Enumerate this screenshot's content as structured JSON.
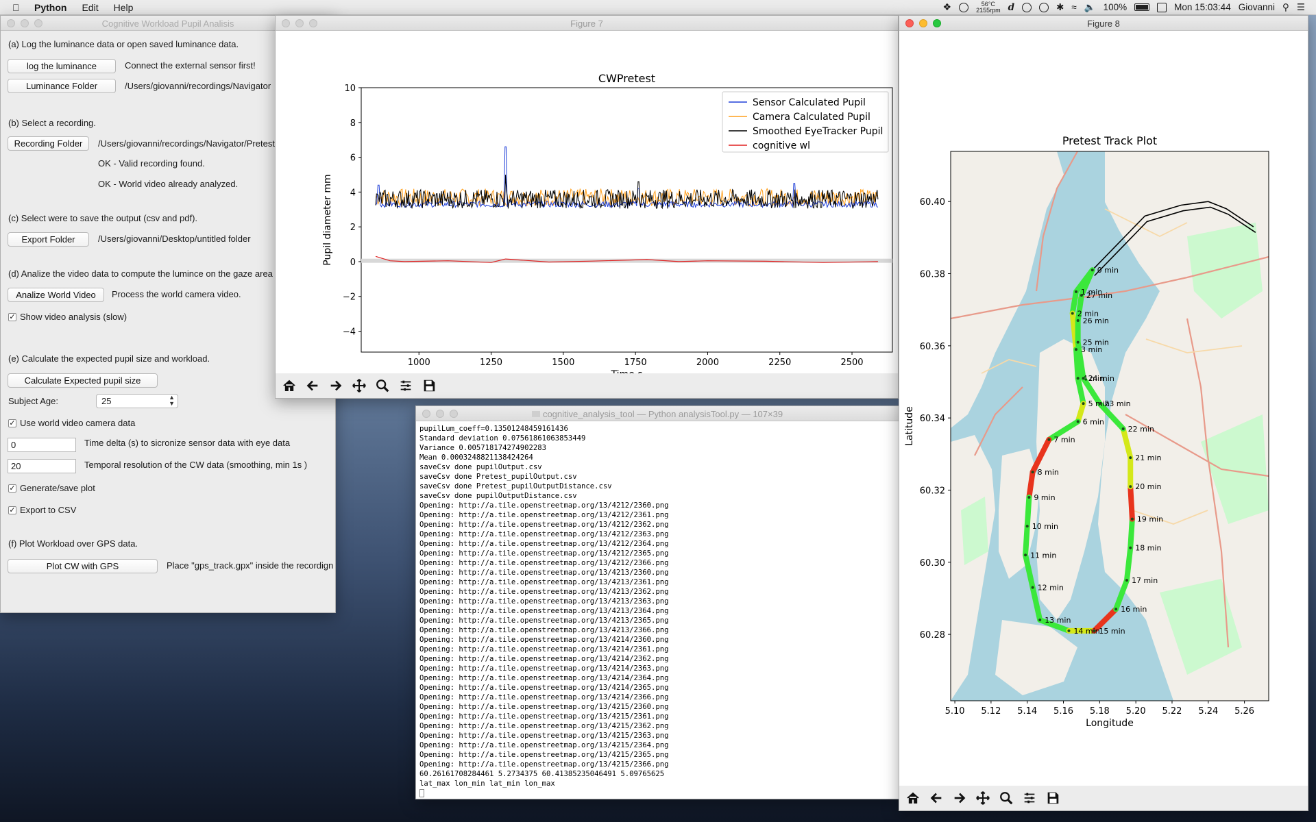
{
  "menubar": {
    "app": "Python",
    "items": [
      "Edit",
      "Help"
    ],
    "temp_top": "56°C",
    "temp_bottom": "2155rpm",
    "battery": "100%",
    "clock": "Mon 15:03:44",
    "user": "Giovanni"
  },
  "app_window": {
    "title": "Cognitive Workload Pupil Analisis",
    "a_label": "(a) Log the luminance data or open saved luminance data.",
    "log_button": "log the luminance",
    "log_note": "Connect the external sensor first!",
    "lum_button": "Luminance Folder",
    "lum_path": "/Users/giovanni/recordings/Navigator",
    "b_label": "(b) Select a recording.",
    "rec_button": "Recording Folder",
    "rec_path": "/Users/giovanni/recordings/Navigator/Pretest",
    "rec_ok1": "OK - Valid recording found.",
    "rec_ok2": "OK - World video already analyzed.",
    "c_label": "(c) Select were to save the output (csv and pdf).",
    "export_button": "Export Folder",
    "export_path": "/Users/giovanni/Desktop/untitled folder",
    "d_label": "(d) Analize the video data to compute the lumince on the gaze area",
    "analize_button": "Analize World Video",
    "analize_note": "Process the world camera video.",
    "show_video": "Show video analysis (slow)",
    "e_label": "(e) Calculate the expected pupil size and workload.",
    "calc_button": "Calculate Expected pupil size",
    "age_label": "Subject Age:",
    "age_value": "25",
    "use_camera": "Use world video camera data",
    "delta_value": "0",
    "delta_label": "Time delta (s) to sicronize sensor data with eye data",
    "res_value": "20",
    "res_label": "Temporal resolution of the CW data (smoothing, min 1s )",
    "gen_plot": "Generate/save plot",
    "export_csv": "Export to CSV",
    "f_label": "(f) Plot Workload over GPS data.",
    "gps_button": "Plot CW with GPS",
    "gps_note": "Place \"gps_track.gpx\" inside the recordign folder"
  },
  "figure7": {
    "title": "Figure 7",
    "toolbar_icons": [
      "home-icon",
      "back-arrow-icon",
      "forward-arrow-icon",
      "pan-icon",
      "zoom-icon",
      "configure-icon",
      "save-icon"
    ]
  },
  "figure8": {
    "title": "Figure 8",
    "toolbar_icons": [
      "home-icon",
      "back-arrow-icon",
      "forward-arrow-icon",
      "pan-icon",
      "zoom-icon",
      "configure-icon",
      "save-icon"
    ]
  },
  "terminal": {
    "title": "cognitive_analysis_tool — Python analysisTool.py — 107×39",
    "lines": [
      "pupilLum_coeff=0.13501248459161436",
      "Standard deviation 0.07561861063853449",
      "Variance 0.005718174274902283",
      "Mean 0.0003248821138424264",
      "saveCsv done pupilOutput.csv",
      "saveCsv done Pretest_pupilOutput.csv",
      "saveCsv done Pretest_pupilOutputDistance.csv",
      "saveCsv done pupilOutputDistance.csv",
      "Opening: http://a.tile.openstreetmap.org/13/4212/2360.png",
      "Opening: http://a.tile.openstreetmap.org/13/4212/2361.png",
      "Opening: http://a.tile.openstreetmap.org/13/4212/2362.png",
      "Opening: http://a.tile.openstreetmap.org/13/4212/2363.png",
      "Opening: http://a.tile.openstreetmap.org/13/4212/2364.png",
      "Opening: http://a.tile.openstreetmap.org/13/4212/2365.png",
      "Opening: http://a.tile.openstreetmap.org/13/4212/2366.png",
      "Opening: http://a.tile.openstreetmap.org/13/4213/2360.png",
      "Opening: http://a.tile.openstreetmap.org/13/4213/2361.png",
      "Opening: http://a.tile.openstreetmap.org/13/4213/2362.png",
      "Opening: http://a.tile.openstreetmap.org/13/4213/2363.png",
      "Opening: http://a.tile.openstreetmap.org/13/4213/2364.png",
      "Opening: http://a.tile.openstreetmap.org/13/4213/2365.png",
      "Opening: http://a.tile.openstreetmap.org/13/4213/2366.png",
      "Opening: http://a.tile.openstreetmap.org/13/4214/2360.png",
      "Opening: http://a.tile.openstreetmap.org/13/4214/2361.png",
      "Opening: http://a.tile.openstreetmap.org/13/4214/2362.png",
      "Opening: http://a.tile.openstreetmap.org/13/4214/2363.png",
      "Opening: http://a.tile.openstreetmap.org/13/4214/2364.png",
      "Opening: http://a.tile.openstreetmap.org/13/4214/2365.png",
      "Opening: http://a.tile.openstreetmap.org/13/4214/2366.png",
      "Opening: http://a.tile.openstreetmap.org/13/4215/2360.png",
      "Opening: http://a.tile.openstreetmap.org/13/4215/2361.png",
      "Opening: http://a.tile.openstreetmap.org/13/4215/2362.png",
      "Opening: http://a.tile.openstreetmap.org/13/4215/2363.png",
      "Opening: http://a.tile.openstreetmap.org/13/4215/2364.png",
      "Opening: http://a.tile.openstreetmap.org/13/4215/2365.png",
      "Opening: http://a.tile.openstreetmap.org/13/4215/2366.png",
      "60.26161708284461 5.2734375 60.41385235046491 5.09765625",
      "lat_max lon_min lat_min lon_max"
    ]
  },
  "chart_data": [
    {
      "type": "line",
      "title": "CWPretest",
      "xlabel": "Time s",
      "ylabel": "Pupil diameter mm",
      "xlim": [
        800,
        2640
      ],
      "ylim": [
        -5.2,
        10
      ],
      "xticks": [
        1000,
        1250,
        1500,
        1750,
        2000,
        2250,
        2500
      ],
      "yticks": [
        -4,
        -2,
        0,
        2,
        4,
        6,
        8,
        10
      ],
      "legend_position": "top-right",
      "series": [
        {
          "name": "Sensor Calculated Pupil",
          "color": "#1f3fd8",
          "x_range": [
            850,
            2590
          ],
          "mean": 3.3,
          "spikes": [
            [
              860,
              4.4
            ],
            [
              1300,
              6.6
            ],
            [
              1760,
              4.2
            ],
            [
              2300,
              4.5
            ]
          ]
        },
        {
          "name": "Camera Calculated Pupil",
          "color": "#ff9f1c",
          "x_range": [
            850,
            2590
          ],
          "mean": 3.7
        },
        {
          "name": "Smoothed EyeTracker Pupil",
          "color": "#000000",
          "x_range": [
            850,
            2590
          ],
          "mean": 3.6,
          "spikes": [
            [
              1300,
              5.0
            ],
            [
              1760,
              4.6
            ]
          ]
        },
        {
          "name": "cognitive wl",
          "color": "#e02020",
          "x_range": [
            850,
            2590
          ],
          "mean": 0.0,
          "points": [
            [
              850,
              0.3
            ],
            [
              900,
              0.05
            ],
            [
              950,
              0.0
            ],
            [
              1100,
              0.05
            ],
            [
              1250,
              -0.05
            ],
            [
              1300,
              0.15
            ],
            [
              1450,
              -0.02
            ],
            [
              1600,
              0.03
            ],
            [
              1790,
              0.12
            ],
            [
              1900,
              0.0
            ],
            [
              2000,
              0.05
            ],
            [
              2200,
              0.02
            ],
            [
              2400,
              -0.05
            ],
            [
              2590,
              0.0
            ]
          ]
        }
      ]
    },
    {
      "type": "line",
      "title": "Pretest Track Plot",
      "xlabel": "Longitude",
      "ylabel": "Latitude",
      "xlim": [
        5.0977,
        5.2734
      ],
      "ylim": [
        60.2616,
        60.4139
      ],
      "xticks": [
        5.1,
        5.12,
        5.14,
        5.16,
        5.18,
        5.2,
        5.22,
        5.24,
        5.26
      ],
      "yticks": [
        60.28,
        60.3,
        60.32,
        60.34,
        60.36,
        60.38,
        60.4
      ],
      "track": [
        {
          "lon": 5.176,
          "lat": 60.381,
          "label": "0 min",
          "wl": "green"
        },
        {
          "lon": 5.167,
          "lat": 60.375,
          "label": "1 min",
          "wl": "green"
        },
        {
          "lon": 5.165,
          "lat": 60.369,
          "label": "2 min",
          "wl": "yellow"
        },
        {
          "lon": 5.167,
          "lat": 60.359,
          "label": "3 min",
          "wl": "green"
        },
        {
          "lon": 5.168,
          "lat": 60.351,
          "label": "4 min",
          "wl": "green"
        },
        {
          "lon": 5.171,
          "lat": 60.344,
          "label": "5 min",
          "wl": "yellow"
        },
        {
          "lon": 5.168,
          "lat": 60.339,
          "label": "6 min",
          "wl": "green"
        },
        {
          "lon": 5.152,
          "lat": 60.334,
          "label": "7 min",
          "wl": "red"
        },
        {
          "lon": 5.143,
          "lat": 60.325,
          "label": "8 min",
          "wl": "red"
        },
        {
          "lon": 5.141,
          "lat": 60.318,
          "label": "9 min",
          "wl": "green"
        },
        {
          "lon": 5.14,
          "lat": 60.31,
          "label": "10 min",
          "wl": "green"
        },
        {
          "lon": 5.139,
          "lat": 60.302,
          "label": "11 min",
          "wl": "green"
        },
        {
          "lon": 5.143,
          "lat": 60.293,
          "label": "12 min",
          "wl": "green"
        },
        {
          "lon": 5.147,
          "lat": 60.284,
          "label": "13 min",
          "wl": "green"
        },
        {
          "lon": 5.163,
          "lat": 60.281,
          "label": "14 min",
          "wl": "yellow"
        },
        {
          "lon": 5.177,
          "lat": 60.281,
          "label": "15 min",
          "wl": "red"
        },
        {
          "lon": 5.189,
          "lat": 60.287,
          "label": "16 min",
          "wl": "green"
        },
        {
          "lon": 5.195,
          "lat": 60.295,
          "label": "17 min",
          "wl": "green"
        },
        {
          "lon": 5.197,
          "lat": 60.304,
          "label": "18 min",
          "wl": "green"
        },
        {
          "lon": 5.198,
          "lat": 60.312,
          "label": "19 min",
          "wl": "red"
        },
        {
          "lon": 5.197,
          "lat": 60.321,
          "label": "20 min",
          "wl": "yellow"
        },
        {
          "lon": 5.197,
          "lat": 60.329,
          "label": "21 min",
          "wl": "yellow"
        },
        {
          "lon": 5.193,
          "lat": 60.337,
          "label": "22 min",
          "wl": "green"
        },
        {
          "lon": 5.18,
          "lat": 60.344,
          "label": "23 min",
          "wl": "green"
        },
        {
          "lon": 5.171,
          "lat": 60.351,
          "label": "24 min",
          "wl": "green"
        },
        {
          "lon": 5.168,
          "lat": 60.361,
          "label": "25 min",
          "wl": "green"
        },
        {
          "lon": 5.168,
          "lat": 60.367,
          "label": "26 min",
          "wl": "green"
        },
        {
          "lon": 5.17,
          "lat": 60.374,
          "label": "27 min",
          "wl": "green"
        }
      ],
      "black_track": [
        [
          5.176,
          60.381
        ],
        [
          5.205,
          60.396
        ],
        [
          5.225,
          60.399
        ],
        [
          5.24,
          60.4
        ],
        [
          5.25,
          60.398
        ],
        [
          5.265,
          60.393
        ]
      ]
    }
  ]
}
